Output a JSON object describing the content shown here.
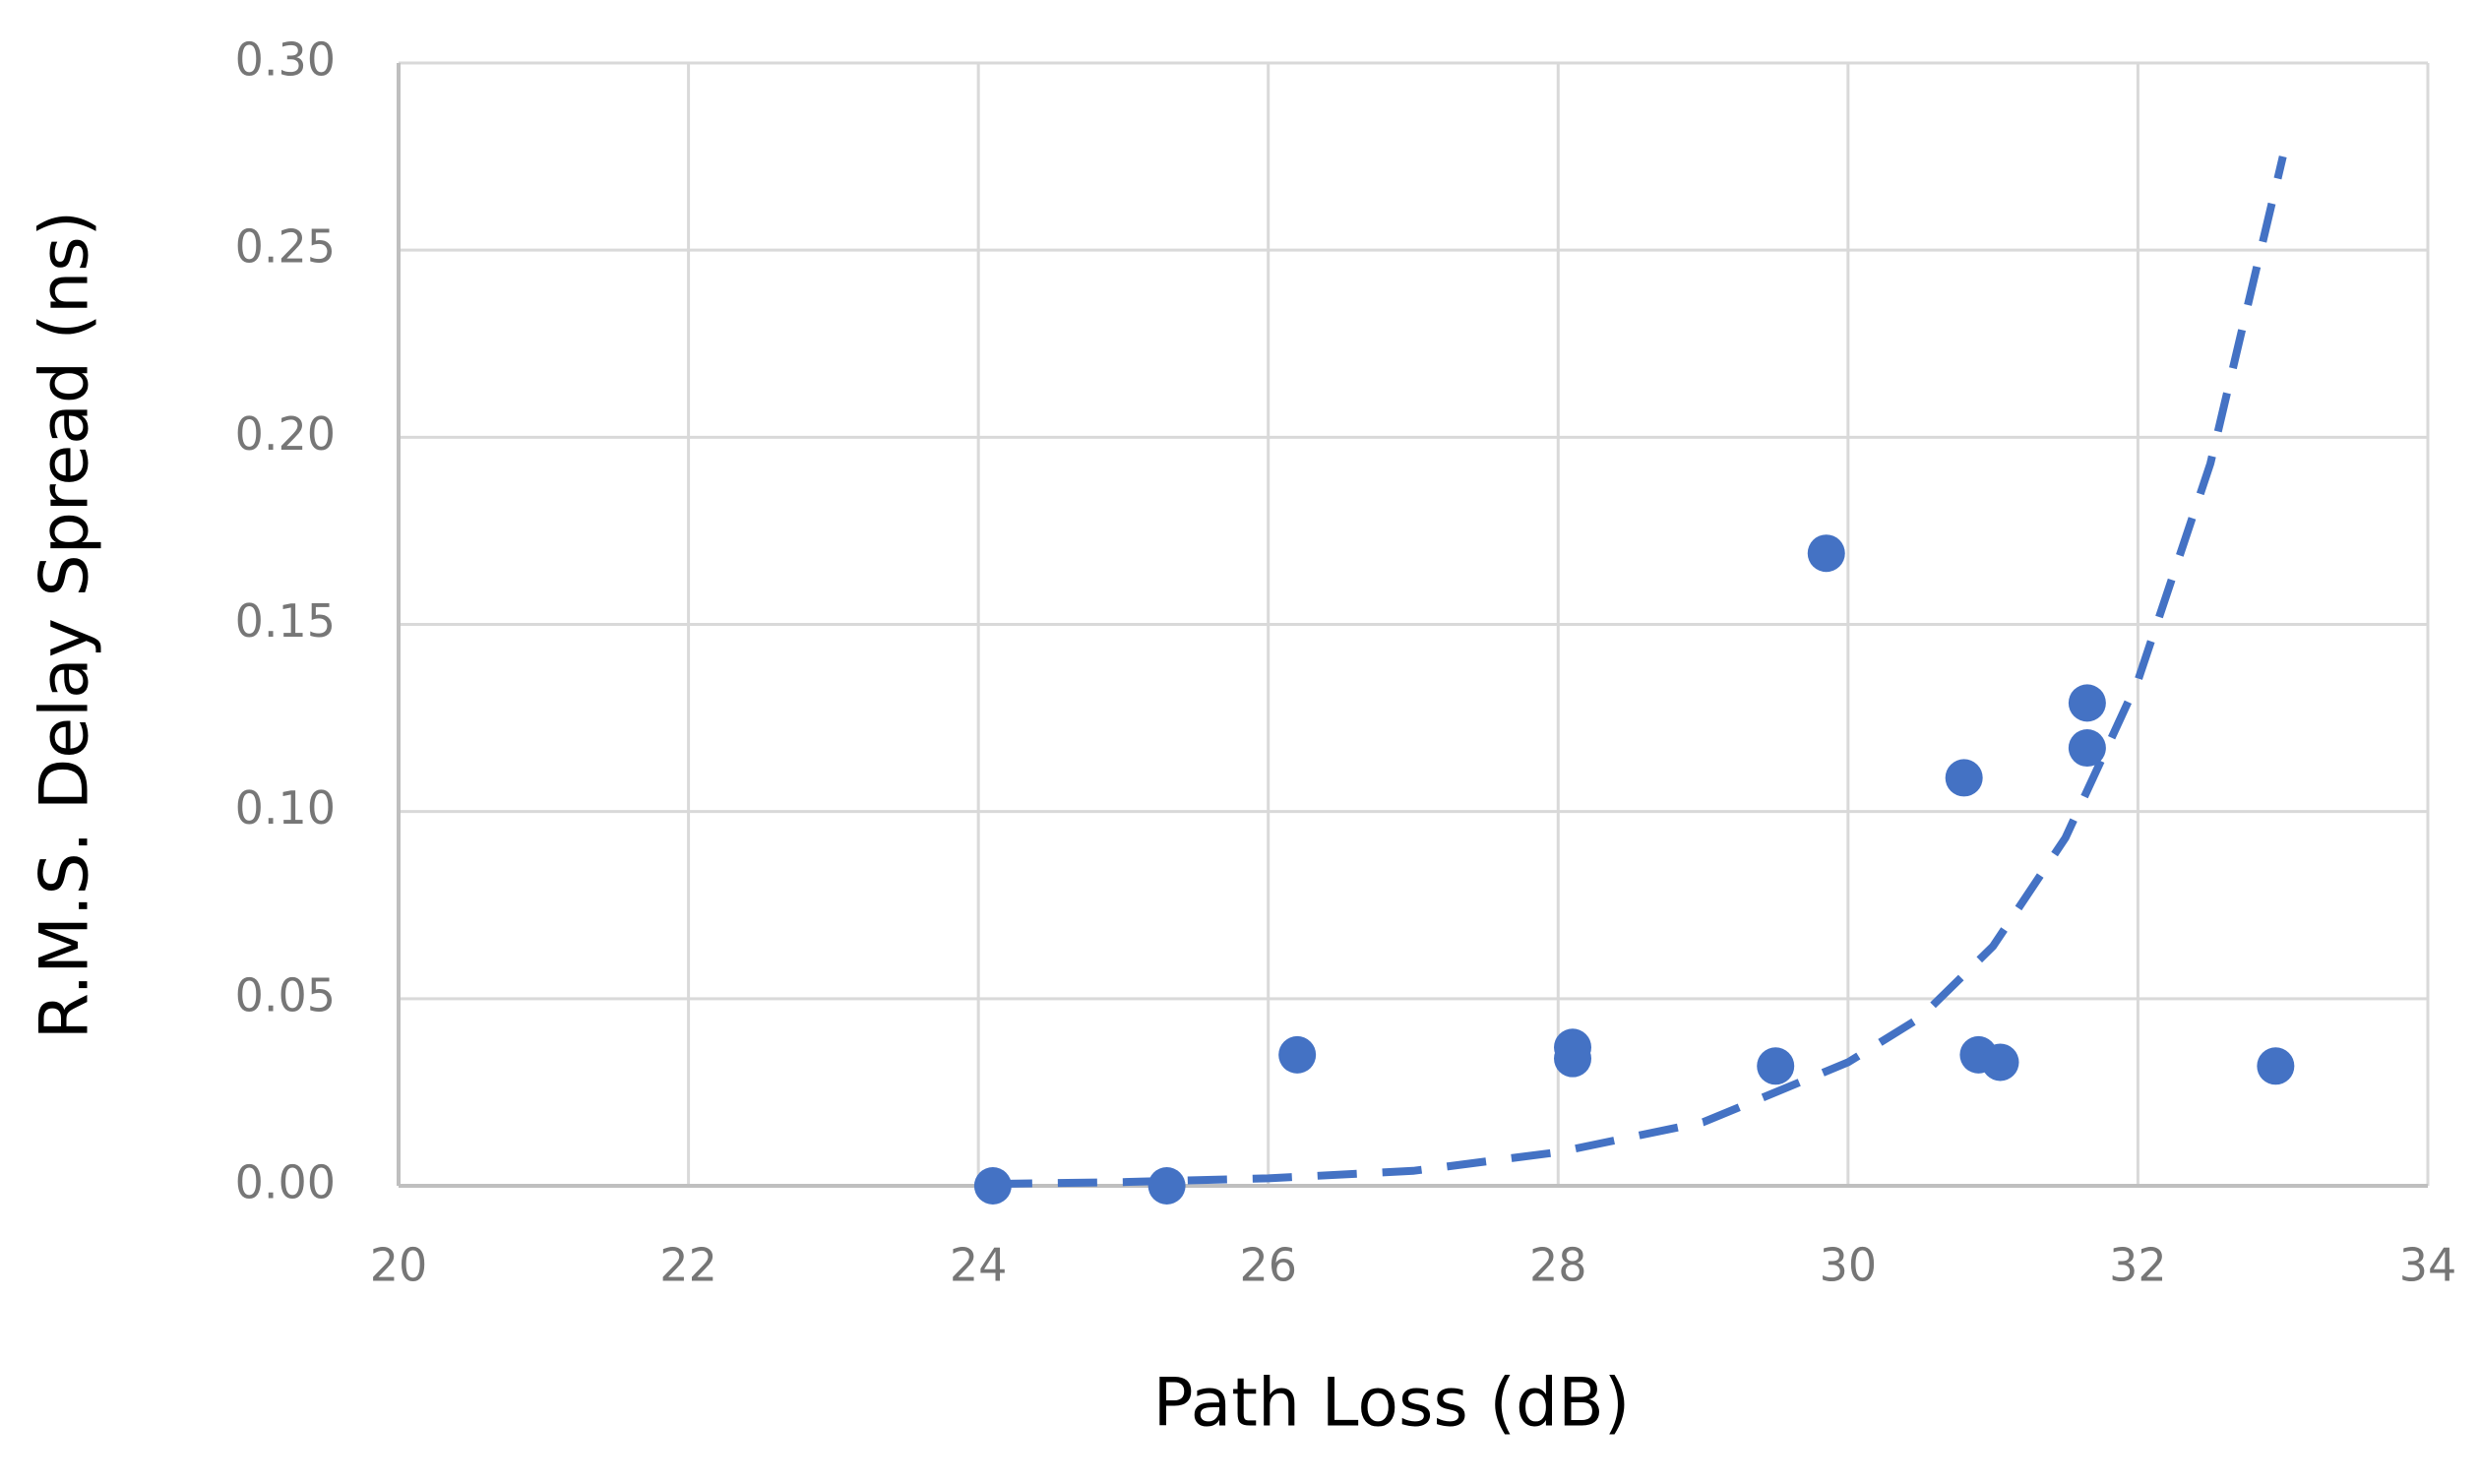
{
  "chart_data": {
    "type": "scatter",
    "x_label": "Path Loss (dB)",
    "y_label": "R.M.S. Delay Spread (ns)",
    "xlim": [
      20,
      34
    ],
    "xticks": [
      20,
      22,
      24,
      26,
      28,
      30,
      32,
      34
    ],
    "ylim": [
      0,
      0.3
    ],
    "yticks": [
      {
        "value": 0,
        "label": "0.00"
      },
      {
        "value": 0.05,
        "label": "0.05"
      },
      {
        "value": 0.1,
        "label": "0.10"
      },
      {
        "value": 0.15,
        "label": "0.15"
      },
      {
        "value": 0.2,
        "label": "0.20"
      },
      {
        "value": 0.25,
        "label": "0.25"
      },
      {
        "value": 0.3,
        "label": "0.30"
      }
    ],
    "grid": true,
    "series": [
      {
        "color": "#4472c4",
        "x": [
          24.1,
          25.3,
          26.2,
          28.1,
          28.1,
          29.5,
          29.85,
          30.8,
          30.9,
          31.05,
          31.65,
          31.65,
          32.95
        ],
        "values": [
          0.0,
          0.0,
          0.035,
          0.037,
          0.034,
          0.032,
          0.169,
          0.109,
          0.035,
          0.033,
          0.129,
          0.117,
          0.032
        ]
      }
    ],
    "trendline": {
      "color": "#4472c4",
      "dashed": true,
      "x": [
        24.1,
        25,
        26,
        27,
        28,
        29,
        30,
        30.5,
        31,
        31.5,
        32,
        32.5,
        33
      ],
      "values": [
        0.0005,
        0.001,
        0.002,
        0.004,
        0.009,
        0.017,
        0.033,
        0.045,
        0.064,
        0.093,
        0.135,
        0.193,
        0.275
      ]
    }
  }
}
